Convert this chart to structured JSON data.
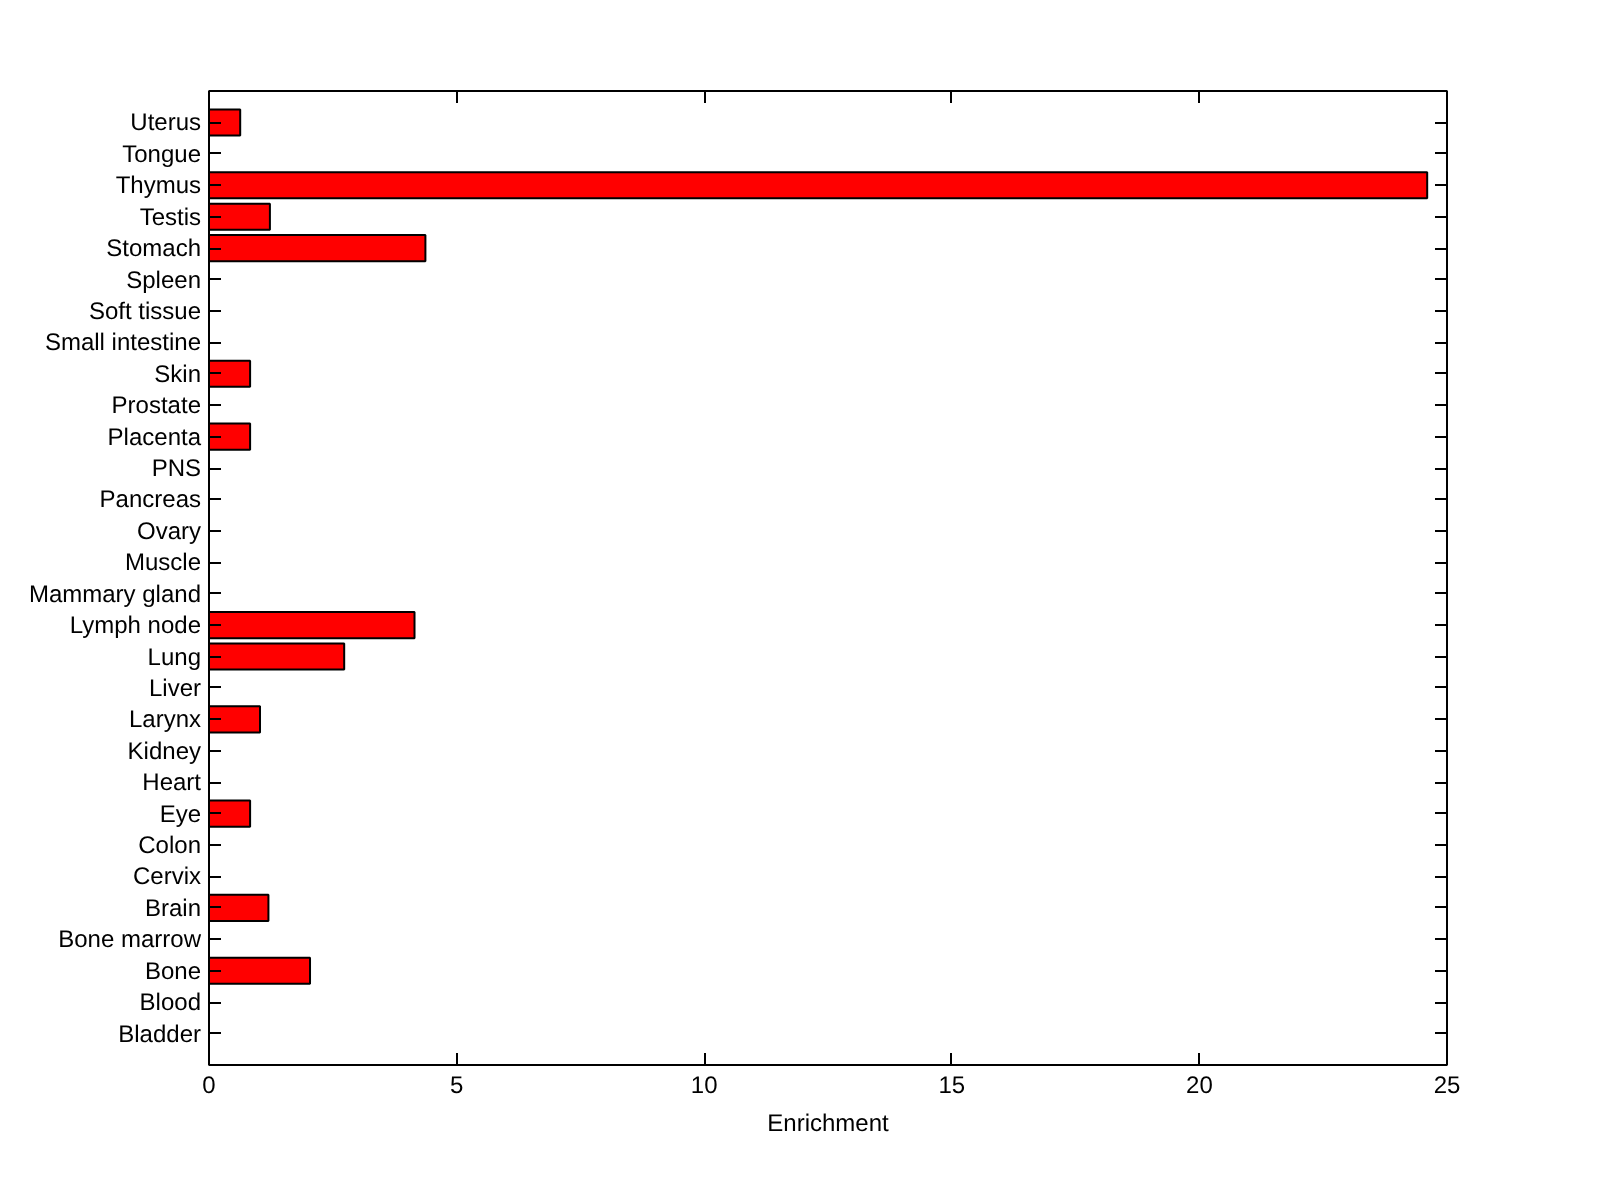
{
  "chart_data": {
    "type": "bar",
    "orientation": "horizontal",
    "xlabel": "Enrichment",
    "categories": [
      "Uterus",
      "Tongue",
      "Thymus",
      "Testis",
      "Stomach",
      "Spleen",
      "Soft tissue",
      "Small intestine",
      "Skin",
      "Prostate",
      "Placenta",
      "PNS",
      "Pancreas",
      "Ovary",
      "Muscle",
      "Mammary gland",
      "Lymph node",
      "Lung",
      "Liver",
      "Larynx",
      "Kidney",
      "Heart",
      "Eye",
      "Colon",
      "Cervix",
      "Brain",
      "Bone marrow",
      "Bone",
      "Blood",
      "Bladder"
    ],
    "values": [
      0.63,
      0,
      24.6,
      1.23,
      4.37,
      0,
      0,
      0,
      0.83,
      0,
      0.83,
      0,
      0,
      0,
      0,
      0,
      4.15,
      2.73,
      0,
      1.03,
      0,
      0,
      0.83,
      0,
      0,
      1.2,
      0,
      2.04,
      0,
      0
    ],
    "color": "#ff0000",
    "xlim": [
      0,
      25
    ],
    "xticks": [
      0,
      5,
      10,
      15,
      20,
      25
    ],
    "grid": false
  }
}
